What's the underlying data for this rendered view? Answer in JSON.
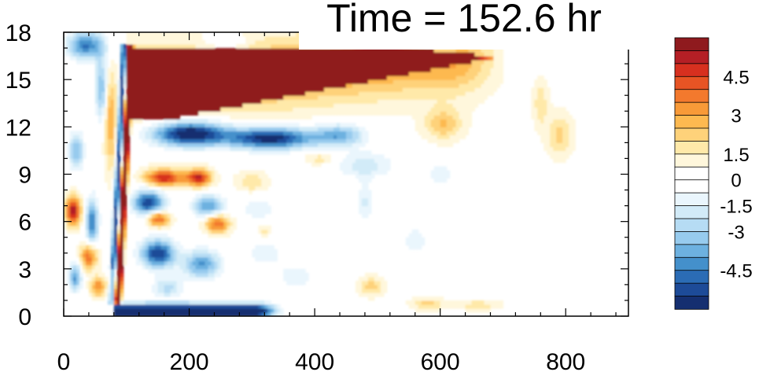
{
  "chart_data": {
    "type": "heatmap",
    "title": "Time = 152.6 hr",
    "xlabel": "",
    "ylabel": "",
    "xlim": [
      0,
      900
    ],
    "ylim": [
      0,
      18
    ],
    "x_ticks": [
      "0",
      "200",
      "400",
      "600",
      "800"
    ],
    "y_ticks": [
      "0",
      "3",
      "6",
      "9",
      "12",
      "15",
      "18"
    ],
    "colorbar": {
      "range": [
        -5.5,
        5.5
      ],
      "labels": [
        "4.5",
        "3",
        "1.5",
        "0",
        "-1.5",
        "-3",
        "-4.5"
      ],
      "colors_top_to_bottom": [
        "#8f1a1e",
        "#b51f25",
        "#d7301f",
        "#e75424",
        "#f3792d",
        "#f89a38",
        "#fdb950",
        "#fed27a",
        "#ffe9a9",
        "#fff7dc",
        "#ffffff",
        "#ffffff",
        "#eaf6fd",
        "#d2ebf8",
        "#b6dcf4",
        "#97cbee",
        "#6db1e0",
        "#4490cb",
        "#2b6cb5",
        "#1d4b98",
        "#152f70"
      ]
    },
    "features": [
      {
        "name": "upper positive band",
        "x": [
          100,
          690
        ],
        "y": [
          12.5,
          17
        ],
        "value": 6
      },
      {
        "name": "lower negative band",
        "x": [
          100,
          450
        ],
        "y": [
          10.5,
          12.3
        ],
        "value": -5
      },
      {
        "name": "surface negative band",
        "x": [
          80,
          360
        ],
        "y": [
          0,
          0.9
        ],
        "value": -5
      },
      {
        "name": "tilted front",
        "x": [
          80,
          115
        ],
        "y": [
          1,
          17
        ],
        "value": 5
      }
    ]
  }
}
